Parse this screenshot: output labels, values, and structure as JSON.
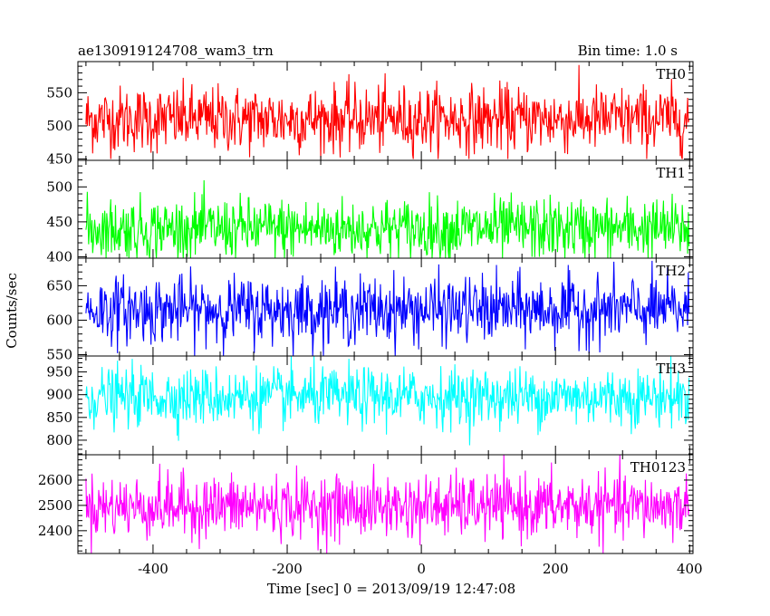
{
  "header": {
    "left": "ae130919124708_wam3_trn",
    "right": "Bin time: 1.0 s"
  },
  "chart_data": {
    "type": "line",
    "xlabel": "Time [sec] 0 = 2013/09/19 12:47:08",
    "ylabel": "Counts/sec",
    "xlim": [
      -512,
      405
    ],
    "xticks": [
      -400,
      -200,
      0,
      200,
      400
    ],
    "x_range": [
      -500,
      399
    ],
    "bin_time": 1.0,
    "panels": [
      {
        "name": "TH0",
        "color": "#ff0000",
        "ylim": [
          448,
          597
        ],
        "yticks": [
          450,
          500,
          550
        ],
        "mean": 510,
        "sigma": 25,
        "min": 450,
        "max": 597
      },
      {
        "name": "TH1",
        "color": "#00ff00",
        "ylim": [
          398,
          538
        ],
        "yticks": [
          400,
          450,
          500
        ],
        "mean": 440,
        "sigma": 22,
        "min": 398,
        "max": 538
      },
      {
        "name": "TH2",
        "color": "#0000ff",
        "ylim": [
          548,
          690
        ],
        "yticks": [
          550,
          600,
          650
        ],
        "mean": 615,
        "sigma": 24,
        "min": 548,
        "max": 690
      },
      {
        "name": "TH3",
        "color": "#00ffff",
        "ylim": [
          768,
          985
        ],
        "yticks": [
          800,
          850,
          900,
          950
        ],
        "mean": 895,
        "sigma": 32,
        "min": 775,
        "max": 985
      },
      {
        "name": "TH0123",
        "color": "#ff00ff",
        "ylim": [
          2310,
          2700
        ],
        "yticks": [
          2400,
          2500,
          2600
        ],
        "mean": 2495,
        "sigma": 62,
        "min": 2310,
        "max": 2700
      }
    ]
  }
}
